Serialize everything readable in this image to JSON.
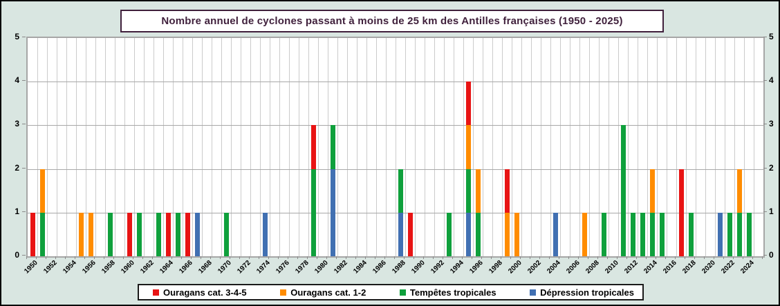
{
  "title": "Nombre annuel de cyclones passant à moins de 25 km des Antilles françaises (1950 - 2025)",
  "colors": {
    "background": "#D9E6E1",
    "plot_background": "#FFFFFF",
    "title_text": "#3F1F3B",
    "grid_vertical": "#CBCBCB",
    "grid_horizontal": "#A8A8A8",
    "axis_frame": "#A6A6A6"
  },
  "chart_data": {
    "type": "bar",
    "stacked": true,
    "title": "Nombre annuel de cyclones passant à moins de 25 km des Antilles françaises (1950 - 2025)",
    "xlabel": "",
    "ylabel": "",
    "x_start": 1950,
    "x_end": 2025,
    "x_label_step": 2,
    "x_first_label": 1950,
    "x_last_label": 2024,
    "ylim": [
      0,
      5
    ],
    "y_ticks": [
      0,
      1,
      2,
      3,
      4,
      5
    ],
    "y_axis_sides": "both",
    "grid": true,
    "legend_position": "bottom",
    "series": [
      {
        "key": "red",
        "name": "Ouragans cat. 3-4-5",
        "color": "#E81414"
      },
      {
        "key": "orange",
        "name": "Ouragans cat. 1-2",
        "color": "#FF8C00"
      },
      {
        "key": "green",
        "name": "Tempêtes tropicales",
        "color": "#0FA03C"
      },
      {
        "key": "blue",
        "name": "Dépression tropicales",
        "color": "#4170B2"
      }
    ],
    "stack_order_bottom_to_top": [
      "blue",
      "green",
      "orange",
      "red"
    ],
    "values_by_year": {
      "1950": {
        "red": 1
      },
      "1951": {
        "green": 1,
        "orange": 1
      },
      "1955": {
        "orange": 1
      },
      "1956": {
        "orange": 1
      },
      "1958": {
        "green": 1
      },
      "1960": {
        "red": 1
      },
      "1961": {
        "green": 1
      },
      "1963": {
        "green": 1
      },
      "1964": {
        "red": 1
      },
      "1965": {
        "green": 1
      },
      "1966": {
        "red": 1
      },
      "1967": {
        "blue": 1
      },
      "1970": {
        "green": 1
      },
      "1974": {
        "blue": 1
      },
      "1979": {
        "green": 2,
        "red": 1
      },
      "1981": {
        "blue": 2,
        "green": 1
      },
      "1988": {
        "blue": 1,
        "green": 1
      },
      "1989": {
        "red": 1
      },
      "1993": {
        "green": 1
      },
      "1995": {
        "blue": 1,
        "green": 1,
        "orange": 1,
        "red": 1
      },
      "1996": {
        "green": 1,
        "orange": 1
      },
      "1999": {
        "orange": 1,
        "red": 1
      },
      "2000": {
        "orange": 1
      },
      "2004": {
        "blue": 1
      },
      "2007": {
        "orange": 1
      },
      "2009": {
        "green": 1
      },
      "2011": {
        "green": 3
      },
      "2012": {
        "green": 1
      },
      "2013": {
        "green": 1
      },
      "2014": {
        "green": 1,
        "orange": 1
      },
      "2015": {
        "green": 1
      },
      "2017": {
        "red": 2
      },
      "2018": {
        "green": 1
      },
      "2021": {
        "blue": 1
      },
      "2022": {
        "green": 1
      },
      "2023": {
        "green": 1,
        "orange": 1
      },
      "2024": {
        "green": 1
      }
    }
  }
}
